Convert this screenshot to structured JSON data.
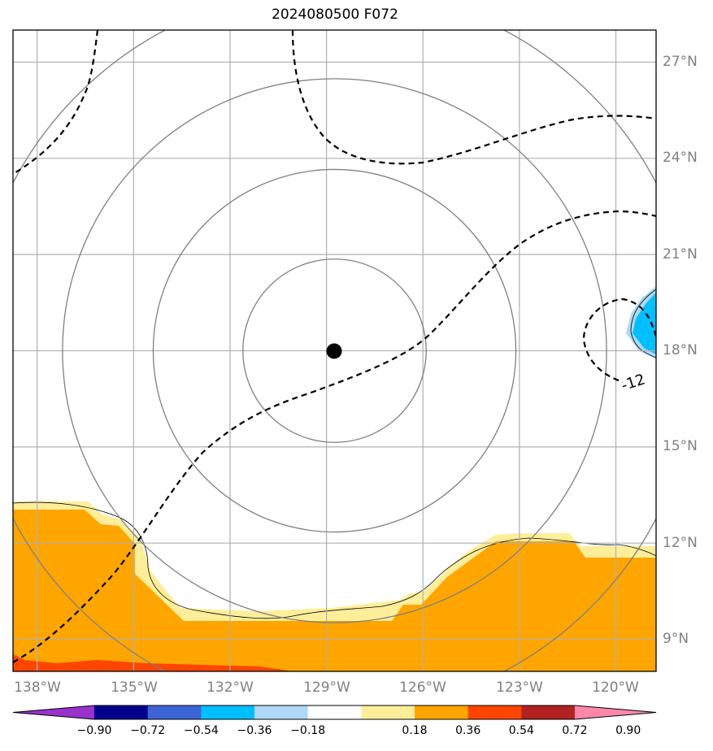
{
  "title": "2024080500 F072",
  "map": {
    "lon_range": [
      -138.75,
      -118.75
    ],
    "lat_range": [
      8.0,
      28.0
    ],
    "gridlines": true,
    "storm_center": {
      "lon": -128.75,
      "lat": 18.0
    },
    "range_ring_color": "#808080",
    "lat_ticks": [
      "9°N",
      "12°N",
      "15°N",
      "18°N",
      "21°N",
      "24°N",
      "27°N"
    ],
    "lon_ticks": [
      "138°W",
      "135°W",
      "132°W",
      "129°W",
      "126°W",
      "123°W",
      "120°W"
    ],
    "contour_label": "-12",
    "fill_colors": {
      "warm_light": "#ffee99",
      "warm_mid": "#ffa500",
      "warm_strong": "#ff4500",
      "cool_light": "#aed8f7",
      "cool_mid": "#00bfff"
    }
  },
  "colorbar": {
    "labels": [
      "-0.90",
      "-0.72",
      "-0.54",
      "-0.36",
      "-0.18",
      "0.18",
      "0.36",
      "0.54",
      "0.72",
      "0.90"
    ],
    "colors": [
      "#9932cc",
      "#00008b",
      "#3c64d7",
      "#00bfff",
      "#aed8f7",
      "#ffffff",
      "#ffee99",
      "#ffa500",
      "#ff4500",
      "#b22222",
      "#ff88aa"
    ]
  }
}
